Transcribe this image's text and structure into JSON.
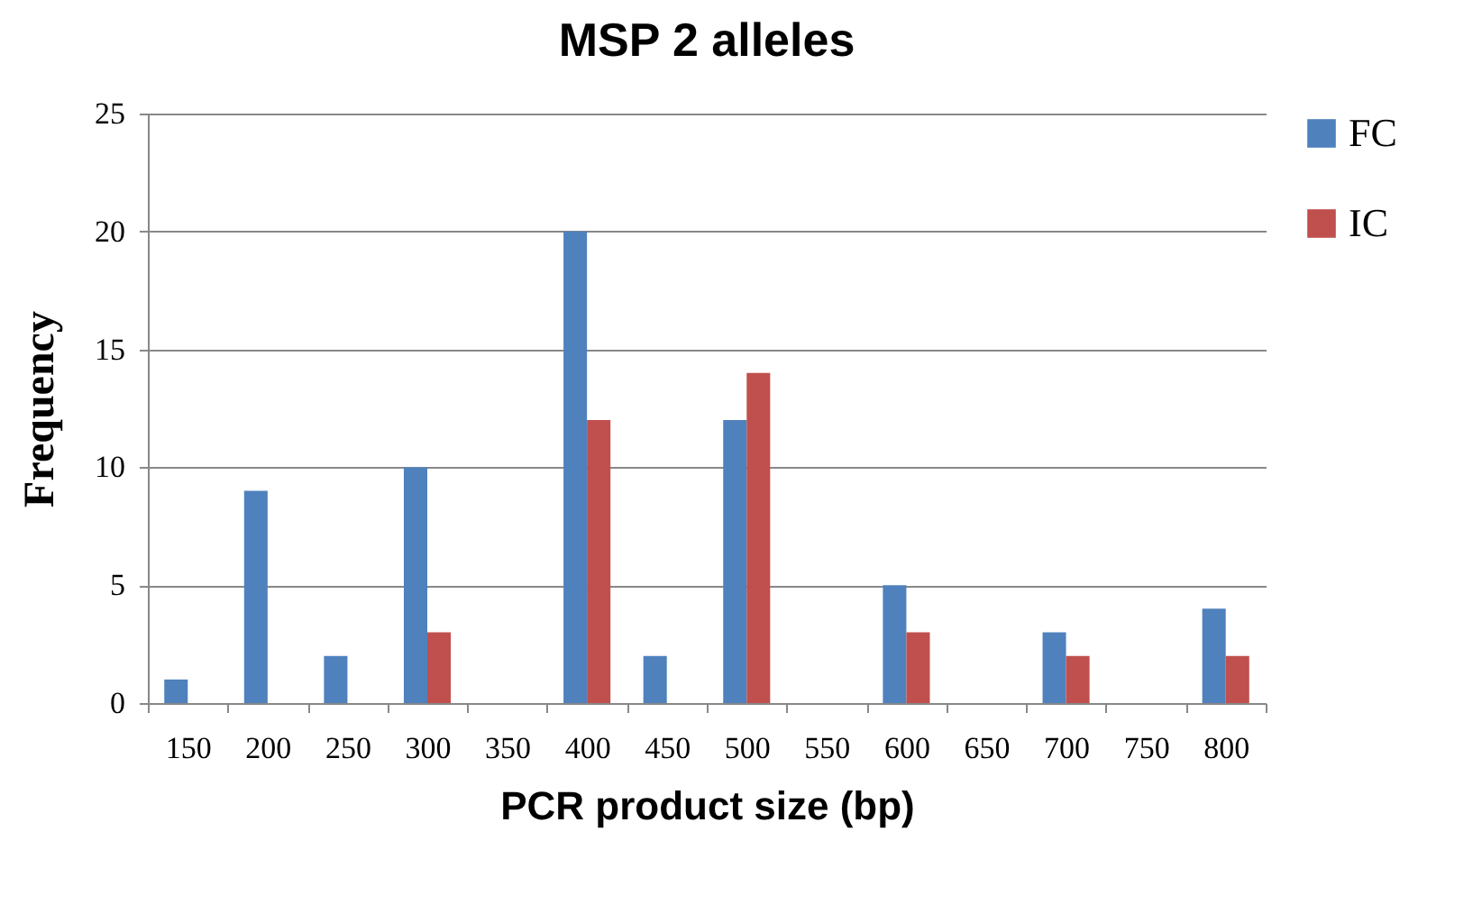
{
  "chart_data": {
    "type": "bar",
    "title": "MSP 2 alleles",
    "xlabel": "PCR product size (bp)",
    "ylabel": "Frequency",
    "categories": [
      "150",
      "200",
      "250",
      "300",
      "350",
      "400",
      "450",
      "500",
      "550",
      "600",
      "650",
      "700",
      "750",
      "800"
    ],
    "series": [
      {
        "name": "FC",
        "color": "#4f81bd",
        "values": [
          1,
          9,
          2,
          10,
          0,
          20,
          2,
          12,
          0,
          5,
          0,
          3,
          0,
          4
        ]
      },
      {
        "name": "IC",
        "color": "#c0504d",
        "values": [
          0,
          0,
          0,
          3,
          0,
          12,
          0,
          14,
          0,
          3,
          0,
          2,
          0,
          2
        ]
      }
    ],
    "ylim": [
      0,
      25
    ],
    "yticks": [
      0,
      5,
      10,
      15,
      20,
      25
    ],
    "grid": "y",
    "legend": "right"
  }
}
